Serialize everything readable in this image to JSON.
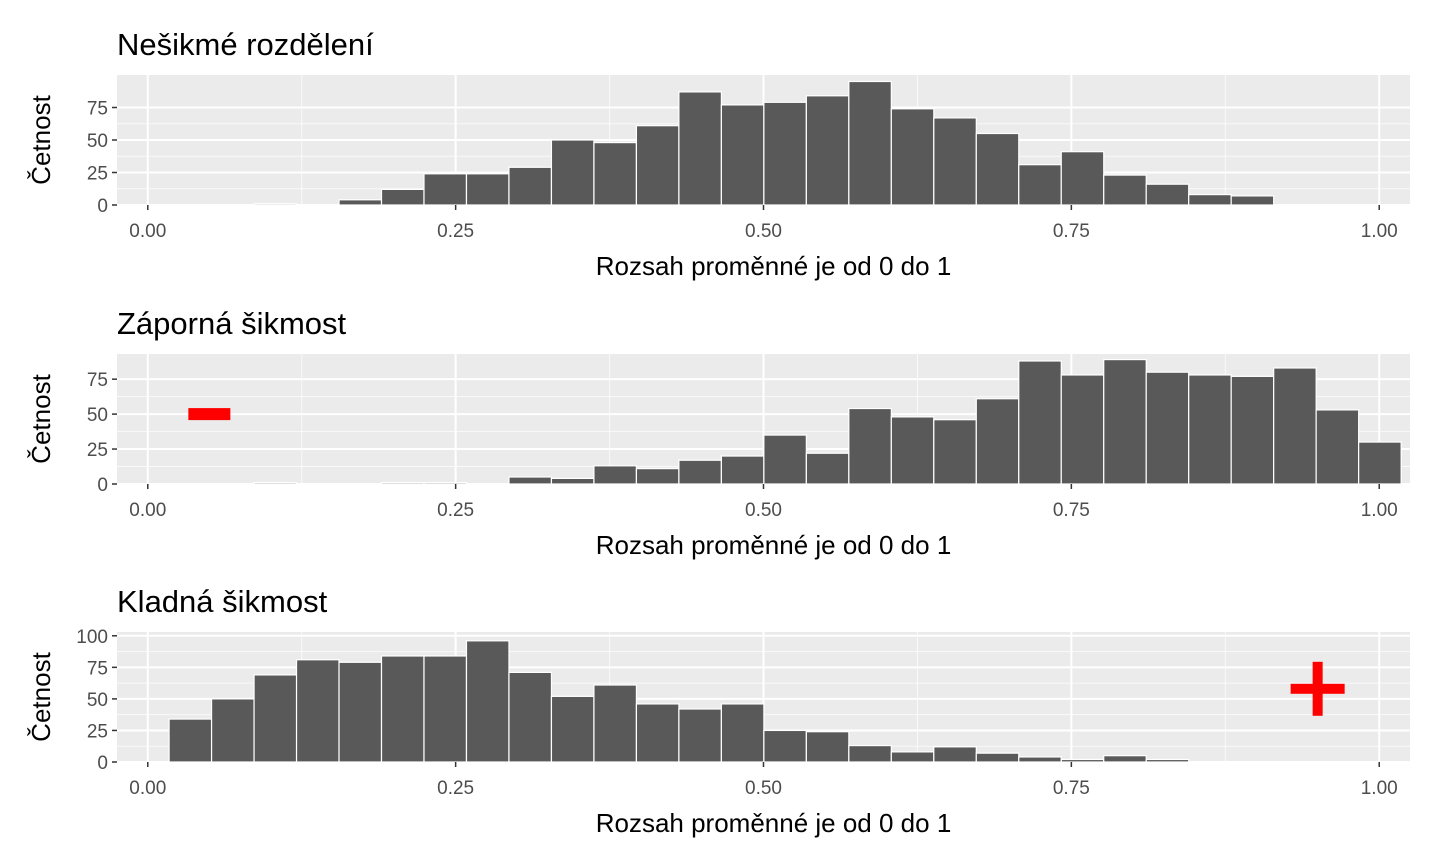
{
  "colors": {
    "panel_background": "#ebebeb",
    "grid": "#ffffff",
    "bar_fill": "#595959",
    "bar_outline": "#ffffff",
    "tick_text": "#4d4d4d",
    "marker": "#ff0000"
  },
  "chart_data": [
    {
      "type": "bar",
      "title": "Nešikmé rozdělení",
      "xlabel": "Rozsah proměnné je od 0 do 1",
      "ylabel": "Četnost",
      "xlim": [
        -0.025,
        1.025
      ],
      "ylim": [
        0,
        100
      ],
      "bin_start": -0.0172,
      "bin_width": 0.0345,
      "x_ticks": [
        "0.00",
        "0.25",
        "0.50",
        "0.75",
        "1.00"
      ],
      "x_tick_values": [
        0,
        0.25,
        0.5,
        0.75,
        1
      ],
      "y_ticks": [
        "0",
        "25",
        "50",
        "75"
      ],
      "y_tick_values": [
        0,
        25,
        50,
        75
      ],
      "grid": true,
      "counts": [
        0,
        0,
        0,
        1,
        0,
        4,
        12,
        24,
        24,
        29,
        50,
        48,
        61,
        87,
        77,
        79,
        84,
        95,
        74,
        67,
        55,
        31,
        41,
        23,
        16,
        8,
        7,
        0,
        0,
        0
      ]
    },
    {
      "type": "bar",
      "title": "Záporná šikmost",
      "xlabel": "Rozsah proměnné je od 0 do 1",
      "ylabel": "Četnost",
      "xlim": [
        -0.025,
        1.025
      ],
      "ylim": [
        0,
        93
      ],
      "bin_start": -0.0172,
      "bin_width": 0.0345,
      "x_ticks": [
        "0.00",
        "0.25",
        "0.50",
        "0.75",
        "1.00"
      ],
      "x_tick_values": [
        0,
        0.25,
        0.5,
        0.75,
        1
      ],
      "y_ticks": [
        "0",
        "25",
        "50",
        "75"
      ],
      "y_tick_values": [
        0,
        25,
        50,
        75
      ],
      "grid": true,
      "marker": {
        "label": "−",
        "x": 0.05,
        "y": 50
      },
      "counts": [
        0,
        0,
        0,
        1,
        0,
        0,
        1,
        1,
        0,
        5,
        4,
        13,
        11,
        17,
        20,
        35,
        22,
        54,
        48,
        46,
        61,
        88,
        78,
        89,
        80,
        78,
        77,
        83,
        53,
        30
      ]
    },
    {
      "type": "bar",
      "title": "Kladná šikmost",
      "xlabel": "Rozsah proměnné je od 0 do 1",
      "ylabel": "Četnost",
      "xlim": [
        -0.025,
        1.025
      ],
      "ylim": [
        0,
        103
      ],
      "bin_start": -0.0172,
      "bin_width": 0.0345,
      "x_ticks": [
        "0.00",
        "0.25",
        "0.50",
        "0.75",
        "1.00"
      ],
      "x_tick_values": [
        0,
        0.25,
        0.5,
        0.75,
        1
      ],
      "y_ticks": [
        "0",
        "25",
        "50",
        "75",
        "100"
      ],
      "y_tick_values": [
        0,
        25,
        50,
        75,
        100
      ],
      "grid": true,
      "marker": {
        "label": "+",
        "x": 0.95,
        "y": 58
      },
      "counts": [
        0,
        34,
        50,
        69,
        81,
        79,
        84,
        84,
        96,
        71,
        52,
        61,
        46,
        42,
        46,
        25,
        24,
        13,
        8,
        12,
        7,
        4,
        2,
        5,
        2,
        0,
        0,
        0,
        0,
        0
      ]
    }
  ]
}
